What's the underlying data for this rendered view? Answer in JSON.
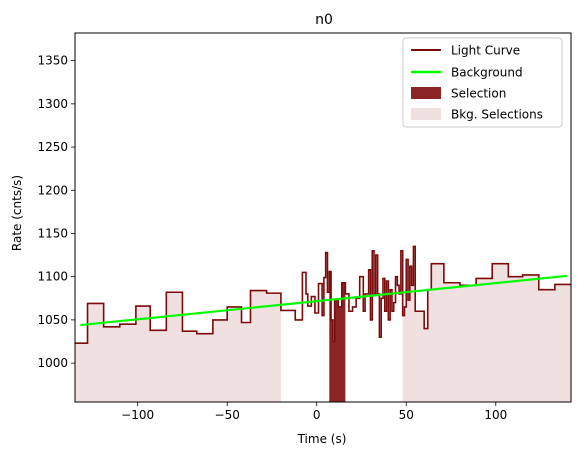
{
  "chart_data": {
    "type": "line",
    "title": "n0",
    "xlabel": "Time (s)",
    "ylabel": "Rate (cnts/s)",
    "xlim": [
      -135,
      142
    ],
    "ylim": [
      955,
      1382
    ],
    "xticks": [
      -100,
      -50,
      0,
      50,
      100
    ],
    "yticks": [
      1000,
      1050,
      1100,
      1150,
      1200,
      1250,
      1300,
      1350
    ],
    "legend_position": "top-right",
    "grid": false,
    "colors": {
      "light_curve": "#7b0a0a",
      "background": "#00ff00",
      "selection": "#8b2525",
      "bkg_selection": "#f0e0e0"
    },
    "series": [
      {
        "name": "Light Curve",
        "style": "step",
        "points": [
          [
            -135,
            1023
          ],
          [
            -128,
            1069
          ],
          [
            -119,
            1042
          ],
          [
            -110,
            1045
          ],
          [
            -101,
            1066
          ],
          [
            -93,
            1038
          ],
          [
            -84,
            1082
          ],
          [
            -75,
            1037
          ],
          [
            -67,
            1034
          ],
          [
            -58,
            1050
          ],
          [
            -50,
            1065
          ],
          [
            -42,
            1047
          ],
          [
            -37,
            1084
          ],
          [
            -28,
            1081
          ],
          [
            -20,
            1061
          ],
          [
            -12,
            1050
          ],
          [
            -8,
            1105
          ],
          [
            -6,
            1080
          ],
          [
            -5,
            1066
          ],
          [
            -3,
            1077
          ],
          [
            -1,
            1058
          ],
          [
            1,
            1092
          ],
          [
            3,
            1055
          ],
          [
            4,
            1099
          ],
          [
            5,
            1128
          ],
          [
            6,
            1082
          ],
          [
            7,
            1106
          ],
          [
            8,
            1050
          ],
          [
            9,
            1025
          ],
          [
            10,
            1073
          ],
          [
            12,
            1065
          ],
          [
            14,
            1093
          ],
          [
            16,
            1080
          ],
          [
            18,
            1060
          ],
          [
            20,
            1065
          ],
          [
            22,
            1075
          ],
          [
            24,
            1100
          ],
          [
            26,
            1060
          ],
          [
            27,
            1080
          ],
          [
            29,
            1108
          ],
          [
            30,
            1050
          ],
          [
            31,
            1130
          ],
          [
            32,
            1080
          ],
          [
            33,
            1125
          ],
          [
            34,
            1080
          ],
          [
            35,
            1030
          ],
          [
            36,
            1075
          ],
          [
            37,
            1098
          ],
          [
            38,
            1060
          ],
          [
            39,
            1095
          ],
          [
            40,
            1050
          ],
          [
            41,
            1085
          ],
          [
            42,
            1060
          ],
          [
            43,
            1070
          ],
          [
            44,
            1100
          ],
          [
            45,
            1090
          ],
          [
            46,
            1080
          ],
          [
            47,
            1130
          ],
          [
            48,
            1055
          ],
          [
            49,
            1065
          ],
          [
            50,
            1120
          ],
          [
            51,
            1073
          ],
          [
            52,
            1112
          ],
          [
            53,
            1090
          ],
          [
            54,
            1135
          ],
          [
            55,
            1060
          ],
          [
            57,
            1060
          ],
          [
            60,
            1040
          ],
          [
            62,
            1085
          ],
          [
            64,
            1115
          ],
          [
            71,
            1093
          ],
          [
            80,
            1090
          ],
          [
            89,
            1098
          ],
          [
            98,
            1097
          ],
          [
            98,
            1115
          ],
          [
            107,
            1100
          ],
          [
            115,
            1102
          ],
          [
            124,
            1085
          ],
          [
            133,
            1091
          ],
          [
            142,
            1091
          ]
        ]
      },
      {
        "name": "Background",
        "style": "line",
        "points": [
          [
            -132,
            1044
          ],
          [
            140,
            1101
          ]
        ]
      }
    ],
    "selection": {
      "name": "Selection",
      "range": [
        7,
        16
      ]
    },
    "bkg_selections": {
      "name": "Bkg. Selections",
      "ranges": [
        [
          -135,
          -20
        ],
        [
          48,
          142
        ]
      ]
    }
  }
}
